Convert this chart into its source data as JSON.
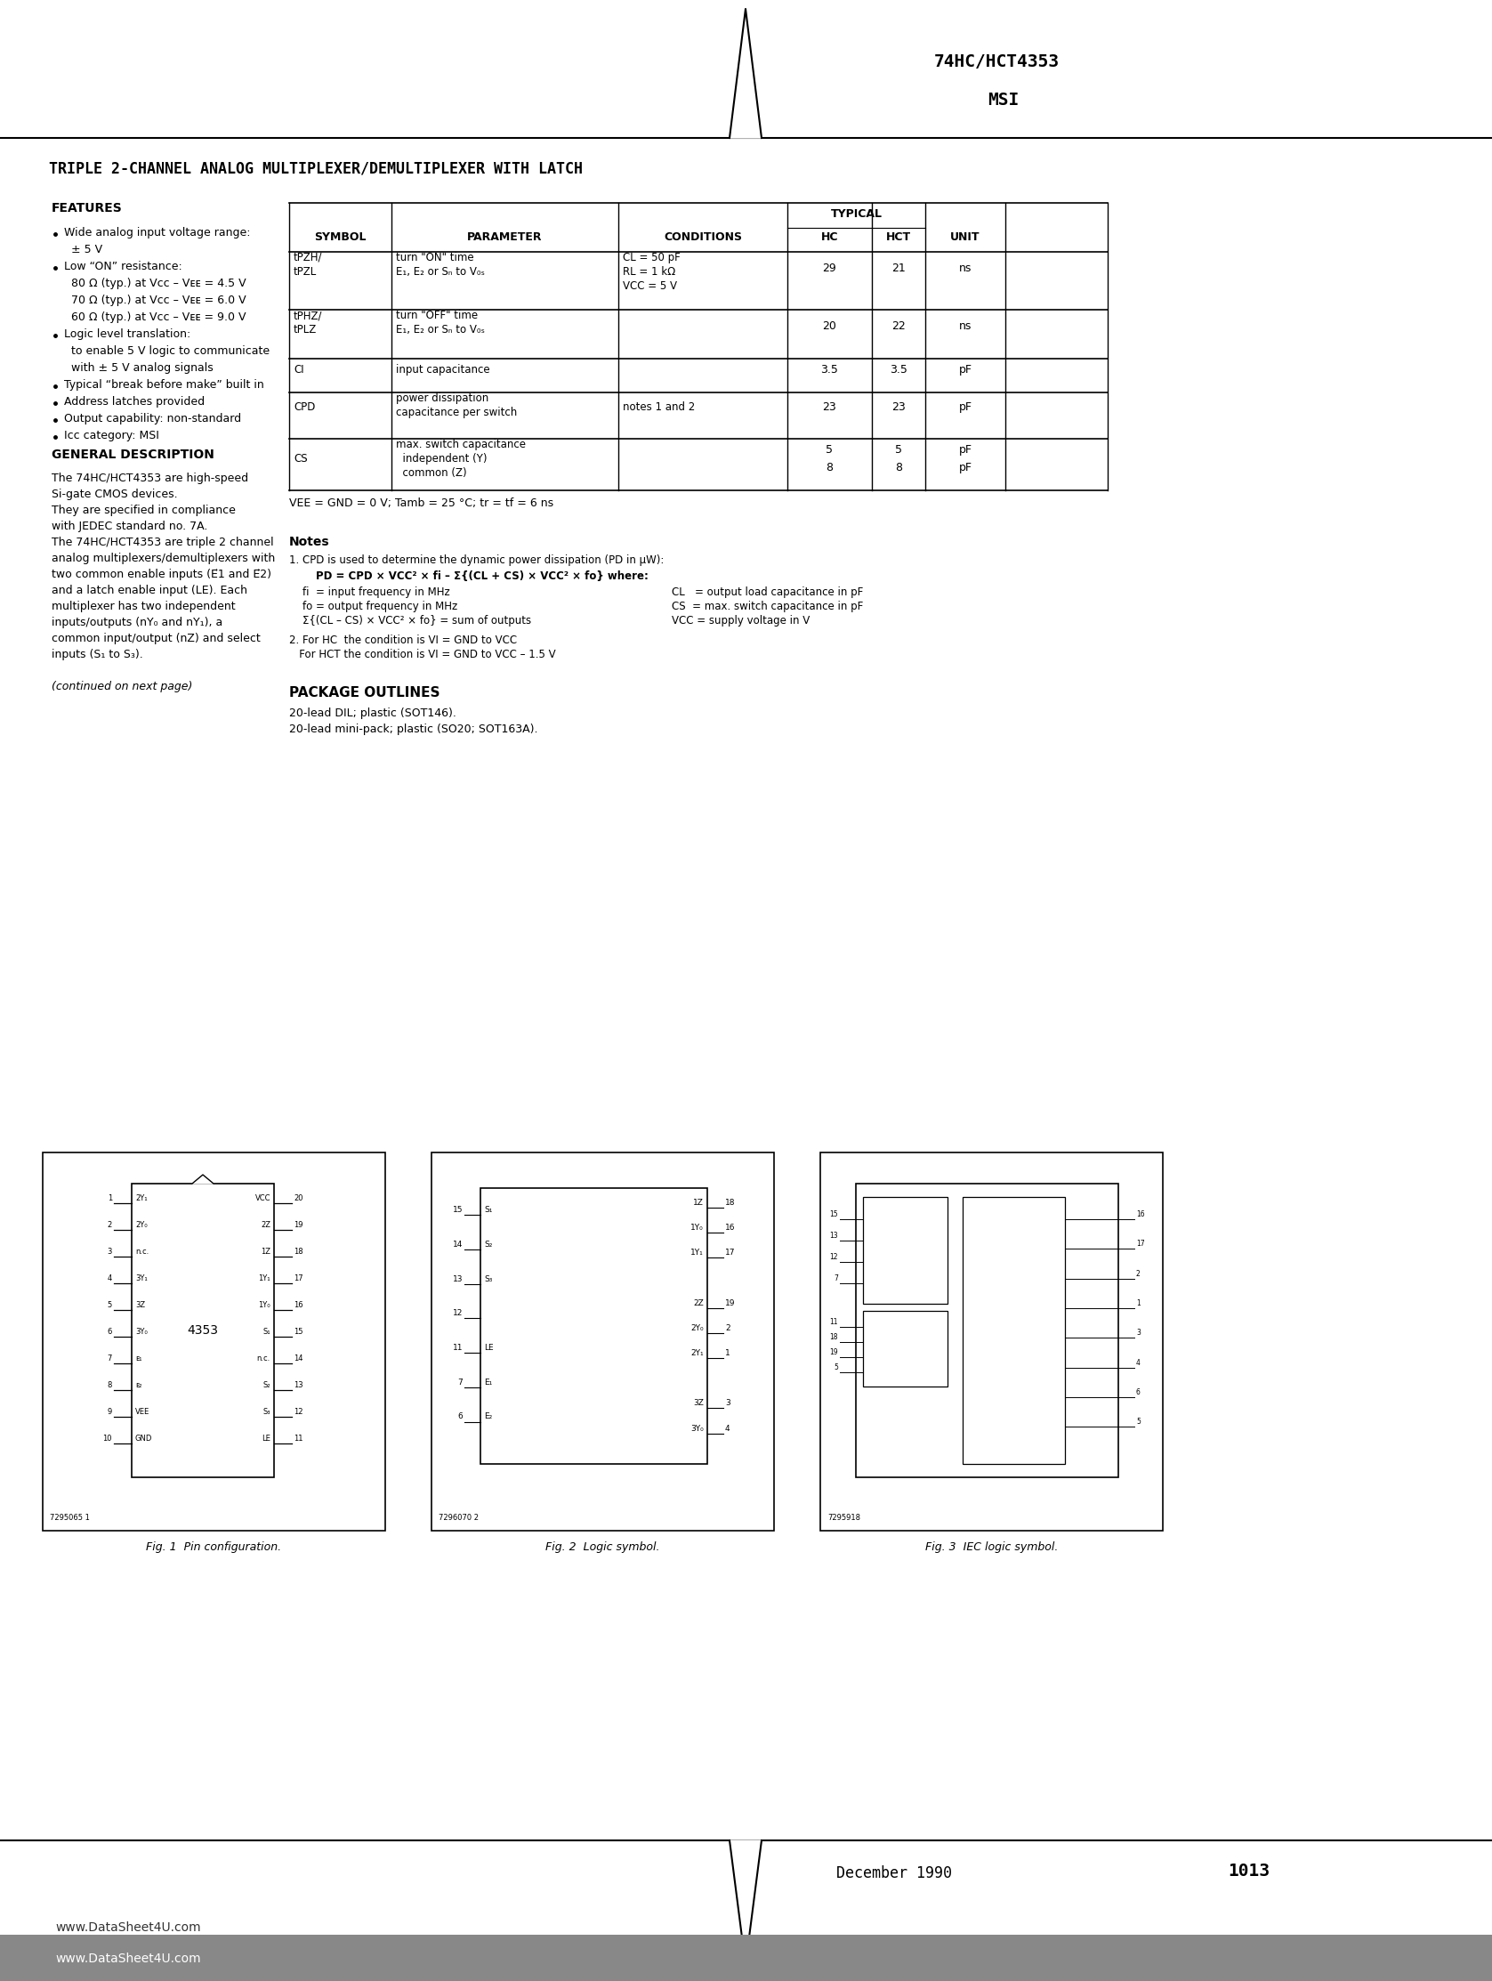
{
  "page_title_right": "74HC/HCT4353",
  "page_subtitle_right": "MSI",
  "main_title": "TRIPLE 2-CHANNEL ANALOG MULTIPLEXER/DEMULTIPLEXER WITH LATCH",
  "features_title": "FEATURES",
  "gen_desc_title": "GENERAL DESCRIPTION",
  "table_header_typical": "TYPICAL",
  "table_header_symbol": "SYMBOL",
  "table_header_parameter": "PARAMETER",
  "table_header_conditions": "CONDITIONS",
  "table_header_hc": "HC",
  "table_header_hct": "HCT",
  "table_header_unit": "UNIT",
  "fig1_caption": "Fig. 1  Pin configuration.",
  "fig2_caption": "Fig. 2  Logic symbol.",
  "fig3_caption": "Fig. 3  IEC logic symbol.",
  "footer_date": "December 1990",
  "footer_page": "1013",
  "watermark": "www.DataSheet4U.com",
  "bg_color": "#ffffff",
  "text_color": "#000000"
}
